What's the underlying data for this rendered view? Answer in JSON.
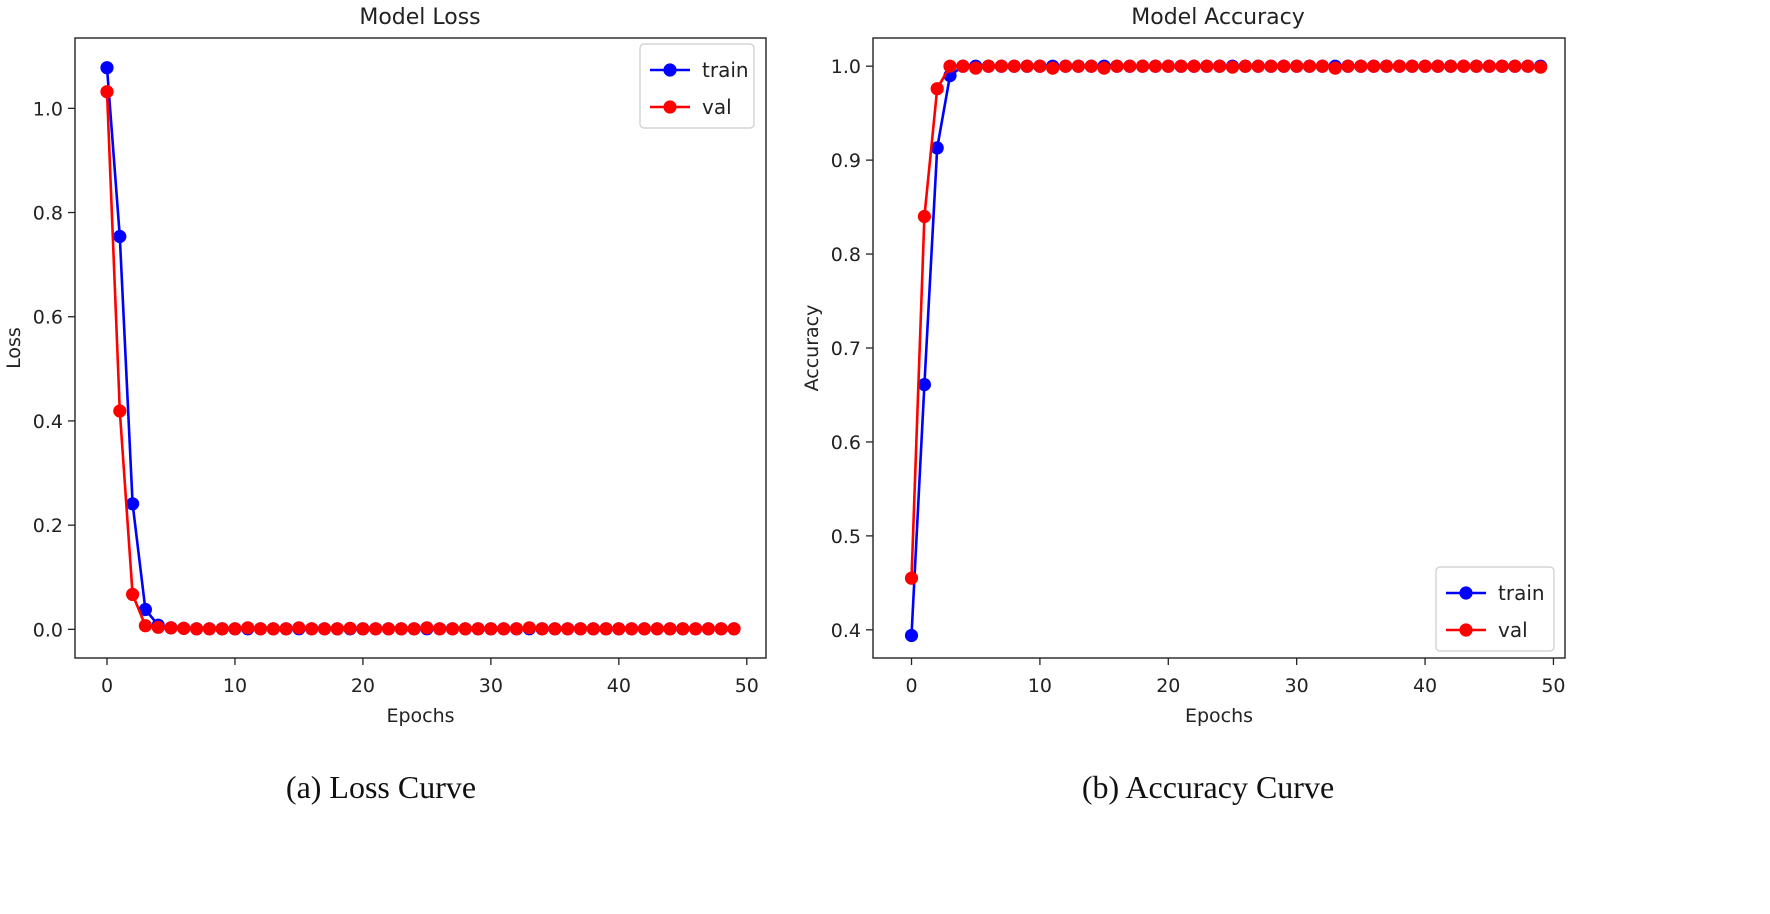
{
  "chart_data": [
    {
      "type": "line",
      "title": "Model Loss",
      "xlabel": "Epochs",
      "ylabel": "Loss",
      "xlim": [
        -2.5,
        51.5
      ],
      "ylim": [
        -0.055,
        1.135
      ],
      "xticks": [
        0,
        10,
        20,
        30,
        40,
        50
      ],
      "yticks": [
        0.0,
        0.2,
        0.4,
        0.6,
        0.8,
        1.0
      ],
      "ytick_decimals": 1,
      "legend_position": "top-right",
      "caption": "(a)  Loss Curve",
      "series": [
        {
          "name": "train",
          "color": "#0000ff",
          "x": [
            0,
            1,
            2,
            3,
            4,
            5,
            6,
            7,
            8,
            9,
            10,
            11,
            12,
            13,
            14,
            15,
            16,
            17,
            18,
            19,
            20,
            21,
            22,
            23,
            24,
            25,
            26,
            27,
            28,
            29,
            30,
            31,
            32,
            33,
            34,
            35,
            36,
            37,
            38,
            39,
            40,
            41,
            42,
            43,
            44,
            45,
            46,
            47,
            48,
            49
          ],
          "values": [
            1.078,
            0.754,
            0.241,
            0.038,
            0.008,
            0.003,
            0.002,
            0.001,
            0.001,
            0.001,
            0.001,
            0.001,
            0.001,
            0.001,
            0.001,
            0.001,
            0.001,
            0.001,
            0.001,
            0.001,
            0.001,
            0.001,
            0.001,
            0.001,
            0.001,
            0.001,
            0.001,
            0.001,
            0.001,
            0.001,
            0.001,
            0.001,
            0.001,
            0.001,
            0.001,
            0.001,
            0.001,
            0.001,
            0.001,
            0.001,
            0.001,
            0.001,
            0.001,
            0.001,
            0.001,
            0.001,
            0.001,
            0.001,
            0.001,
            0.001
          ]
        },
        {
          "name": "val",
          "color": "#ff0000",
          "x": [
            0,
            1,
            2,
            3,
            4,
            5,
            6,
            7,
            8,
            9,
            10,
            11,
            12,
            13,
            14,
            15,
            16,
            17,
            18,
            19,
            20,
            21,
            22,
            23,
            24,
            25,
            26,
            27,
            28,
            29,
            30,
            31,
            32,
            33,
            34,
            35,
            36,
            37,
            38,
            39,
            40,
            41,
            42,
            43,
            44,
            45,
            46,
            47,
            48,
            49
          ],
          "values": [
            1.032,
            0.419,
            0.067,
            0.007,
            0.004,
            0.003,
            0.002,
            0.001,
            0.001,
            0.001,
            0.001,
            0.003,
            0.001,
            0.001,
            0.001,
            0.003,
            0.001,
            0.001,
            0.001,
            0.002,
            0.001,
            0.001,
            0.001,
            0.001,
            0.001,
            0.003,
            0.001,
            0.001,
            0.001,
            0.001,
            0.001,
            0.001,
            0.001,
            0.003,
            0.001,
            0.001,
            0.001,
            0.001,
            0.001,
            0.001,
            0.001,
            0.001,
            0.001,
            0.001,
            0.001,
            0.001,
            0.001,
            0.001,
            0.001,
            0.001
          ]
        }
      ]
    },
    {
      "type": "line",
      "title": "Model Accuracy",
      "xlabel": "Epochs",
      "ylabel": "Accuracy",
      "xlim": [
        -3.0,
        50.9
      ],
      "ylim": [
        0.37,
        1.03
      ],
      "xticks": [
        0,
        10,
        20,
        30,
        40,
        50
      ],
      "yticks": [
        0.4,
        0.5,
        0.6,
        0.7,
        0.8,
        0.9,
        1.0
      ],
      "ytick_decimals": 1,
      "legend_position": "bottom-right",
      "caption": "(b)  Accuracy Curve",
      "series": [
        {
          "name": "train",
          "color": "#0000ff",
          "x": [
            0,
            1,
            2,
            3,
            4,
            5,
            6,
            7,
            8,
            9,
            10,
            11,
            12,
            13,
            14,
            15,
            16,
            17,
            18,
            19,
            20,
            21,
            22,
            23,
            24,
            25,
            26,
            27,
            28,
            29,
            30,
            31,
            32,
            33,
            34,
            35,
            36,
            37,
            38,
            39,
            40,
            41,
            42,
            43,
            44,
            45,
            46,
            47,
            48,
            49
          ],
          "values": [
            0.394,
            0.661,
            0.913,
            0.99,
            1.0,
            1.0,
            1.0,
            1.0,
            1.0,
            1.0,
            1.0,
            1.0,
            1.0,
            1.0,
            1.0,
            1.0,
            1.0,
            1.0,
            1.0,
            1.0,
            1.0,
            1.0,
            1.0,
            1.0,
            1.0,
            1.0,
            1.0,
            1.0,
            1.0,
            1.0,
            1.0,
            1.0,
            1.0,
            1.0,
            1.0,
            1.0,
            1.0,
            1.0,
            1.0,
            1.0,
            1.0,
            1.0,
            1.0,
            1.0,
            1.0,
            1.0,
            1.0,
            1.0,
            1.0,
            1.0
          ]
        },
        {
          "name": "val",
          "color": "#ff0000",
          "x": [
            0,
            1,
            2,
            3,
            4,
            5,
            6,
            7,
            8,
            9,
            10,
            11,
            12,
            13,
            14,
            15,
            16,
            17,
            18,
            19,
            20,
            21,
            22,
            23,
            24,
            25,
            26,
            27,
            28,
            29,
            30,
            31,
            32,
            33,
            34,
            35,
            36,
            37,
            38,
            39,
            40,
            41,
            42,
            43,
            44,
            45,
            46,
            47,
            48,
            49
          ],
          "values": [
            0.455,
            0.84,
            0.976,
            1.0,
            1.0,
            0.998,
            1.0,
            1.0,
            1.0,
            1.0,
            1.0,
            0.998,
            1.0,
            1.0,
            1.0,
            0.998,
            1.0,
            1.0,
            1.0,
            1.0,
            1.0,
            1.0,
            1.0,
            1.0,
            1.0,
            0.999,
            1.0,
            1.0,
            1.0,
            1.0,
            1.0,
            1.0,
            1.0,
            0.998,
            1.0,
            1.0,
            1.0,
            1.0,
            1.0,
            1.0,
            1.0,
            1.0,
            1.0,
            1.0,
            1.0,
            1.0,
            1.0,
            1.0,
            1.0,
            0.999
          ]
        }
      ]
    }
  ]
}
